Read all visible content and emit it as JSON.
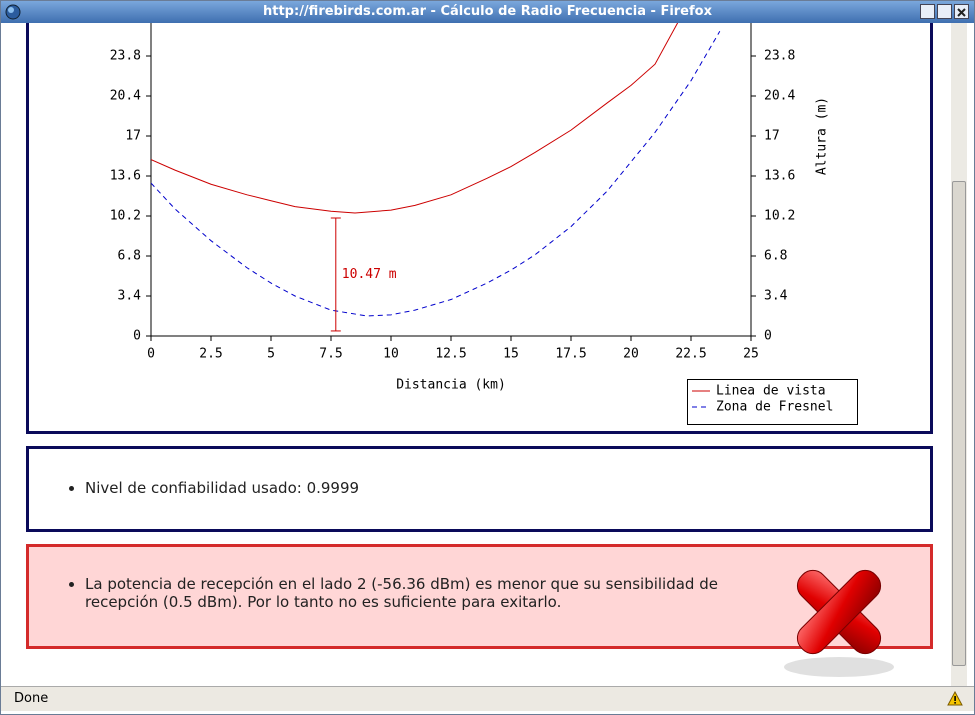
{
  "window": {
    "title": "http://firebirds.com.ar - Cálculo de Radio Frecuencia - Firefox"
  },
  "chart_data": {
    "type": "line",
    "x_label": "Distancia (km)",
    "y_label": "Altura (m)",
    "xlim": [
      0,
      25
    ],
    "xticks": [
      0,
      2.5,
      5,
      7.5,
      10,
      12.5,
      15,
      17.5,
      20,
      22.5,
      25
    ],
    "ylim": [
      0,
      27.2
    ],
    "yticks": [
      0,
      3.4,
      6.8,
      10.2,
      13.6,
      17,
      20.4,
      23.8
    ],
    "series": [
      {
        "name": "Linea de vista",
        "color": "#cc0000",
        "style": "solid",
        "x": [
          0,
          1,
          2.5,
          4,
          5,
          6,
          7.5,
          8.5,
          10,
          11,
          12.5,
          14,
          15,
          16,
          17.5,
          19,
          20,
          21,
          22.1
        ],
        "values": [
          15.0,
          14.1,
          12.9,
          12.0,
          11.5,
          11.0,
          10.6,
          10.45,
          10.7,
          11.1,
          12.0,
          13.4,
          14.4,
          15.6,
          17.5,
          19.8,
          21.3,
          23.1,
          27.2
        ]
      },
      {
        "name": "Zona de Fresnel",
        "color": "#0000cc",
        "style": "dashed",
        "x": [
          0,
          1,
          2.5,
          4,
          5,
          6,
          7.5,
          9,
          10,
          11,
          12.5,
          14,
          15,
          16,
          17.5,
          19,
          20,
          21,
          22.5,
          23.7
        ],
        "values": [
          13.0,
          10.8,
          8.1,
          5.8,
          4.5,
          3.4,
          2.2,
          1.7,
          1.8,
          2.2,
          3.1,
          4.5,
          5.6,
          6.9,
          9.3,
          12.3,
          14.8,
          17.3,
          21.7,
          25.9
        ]
      }
    ],
    "annotation": {
      "x": 7.7,
      "top": 10.03,
      "bottom": 0.43,
      "label": "10.47 m"
    }
  },
  "info_panel": {
    "items": [
      "Nivel de confiabilidad usado: 0.9999"
    ]
  },
  "error_panel": {
    "items": [
      "La potencia de recepción en el lado 2 (-56.36 dBm) es menor que su sensibilidad de recepción (0.5 dBm). Por lo tanto no es suficiente para exitarlo."
    ]
  },
  "status_bar": {
    "text": "Done"
  }
}
